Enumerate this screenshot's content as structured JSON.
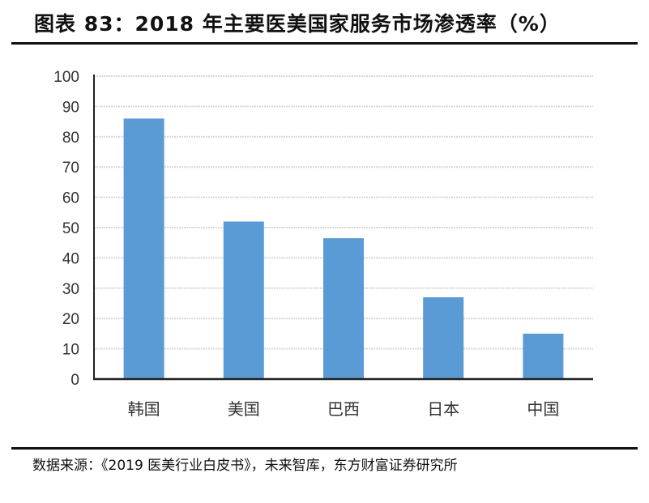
{
  "title": "图表 83：2018 年主要医美国家服务市场渗透率（%）",
  "source": "数据来源：《2019 医美行业白皮书》，未来智库，东方财富证券研究所",
  "colors": {
    "bar": "#5b9bd5",
    "grid": "#d9d9d9",
    "axis": "#222222"
  },
  "chart_data": {
    "type": "bar",
    "title": "2018 年主要医美国家服务市场渗透率（%）",
    "xlabel": "",
    "ylabel": "",
    "categories": [
      "韩国",
      "美国",
      "巴西",
      "日本",
      "中国"
    ],
    "values": [
      86,
      52,
      46.5,
      27,
      15
    ],
    "ylim": [
      0,
      100
    ],
    "yticks": [
      0,
      10,
      20,
      30,
      40,
      50,
      60,
      70,
      80,
      90,
      100
    ],
    "grid": true,
    "legend": null
  }
}
